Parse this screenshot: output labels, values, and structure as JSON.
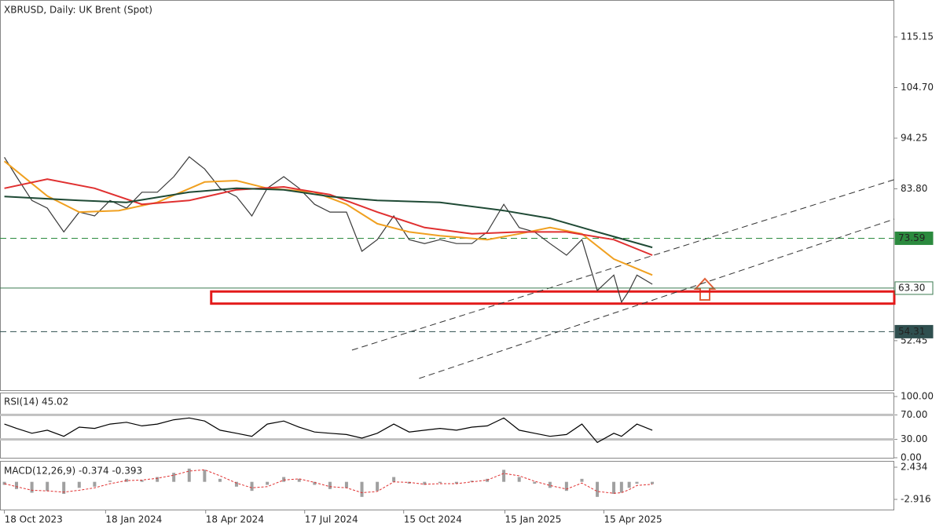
{
  "chart_data": [
    {
      "type": "line",
      "title": "XBRUSD, Daily:  UK Brent (Spot)",
      "xlim": [
        "2023-10-14",
        "2026-01-04"
      ],
      "xticks": [
        {
          "value": "2023-10-18",
          "label": "18 Oct 2023"
        },
        {
          "value": "2024-01-18",
          "label": "18 Jan 2024"
        },
        {
          "value": "2024-04-18",
          "label": "18 Apr 2024"
        },
        {
          "value": "2024-07-17",
          "label": "17 Jul 2024"
        },
        {
          "value": "2024-10-15",
          "label": "15 Oct 2024"
        },
        {
          "value": "2025-01-15",
          "label": "15 Jan 2025"
        },
        {
          "value": "2025-04-15",
          "label": "15 Apr 2025"
        }
      ],
      "ylim": [
        42.22,
        122.77
      ],
      "yticks": [
        115.15,
        {
          "value": 104.7,
          "label": "104.70"
        },
        94.25,
        {
          "value": 83.8,
          "label": "83.80"
        },
        52.45
      ],
      "series": [
        {
          "color": "#3a3a3a",
          "x": [
            "2023-10-18",
            "2023-10-29",
            "2023-11-12",
            "2023-11-26",
            "2023-12-11",
            "2023-12-25",
            "2024-01-08",
            "2024-01-22",
            "2024-02-06",
            "2024-02-20",
            "2024-03-05",
            "2024-03-20",
            "2024-04-03",
            "2024-04-17",
            "2024-05-01",
            "2024-05-16",
            "2024-05-30",
            "2024-06-13",
            "2024-06-28",
            "2024-07-12",
            "2024-07-26",
            "2024-08-09",
            "2024-08-24",
            "2024-09-07",
            "2024-09-21",
            "2024-10-06",
            "2024-10-20",
            "2024-11-03",
            "2024-11-17",
            "2024-12-02",
            "2024-12-16",
            "2024-12-30",
            "2025-01-14",
            "2025-01-28",
            "2025-02-11",
            "2025-02-25",
            "2025-03-12",
            "2025-03-26",
            "2025-04-09",
            "2025-04-24",
            "2025-05-01",
            "2025-05-08",
            "2025-05-15",
            "2025-05-29"
          ],
          "values": [
            90.3,
            86.3,
            81.4,
            79.8,
            74.9,
            79.0,
            78.2,
            81.4,
            79.8,
            83.1,
            83.1,
            86.3,
            90.4,
            87.9,
            83.9,
            82.2,
            78.2,
            83.9,
            86.3,
            83.9,
            80.6,
            79.0,
            79.0,
            70.9,
            73.3,
            78.2,
            73.3,
            72.5,
            73.3,
            72.5,
            72.5,
            74.9,
            80.6,
            75.8,
            74.9,
            72.5,
            70.1,
            73.3,
            62.8,
            66.0,
            60.4,
            62.8,
            66.0,
            64.1
          ]
        },
        {
          "color": "#f0a020",
          "x": [
            "2023-10-18",
            "2023-11-26",
            "2023-12-25",
            "2024-01-30",
            "2024-03-05",
            "2024-04-17",
            "2024-05-16",
            "2024-06-13",
            "2024-07-26",
            "2024-08-24",
            "2024-09-21",
            "2024-10-20",
            "2024-11-17",
            "2024-12-30",
            "2025-01-28",
            "2025-02-25",
            "2025-03-26",
            "2025-04-24",
            "2025-05-29"
          ],
          "values": [
            89.5,
            82.3,
            79.0,
            79.3,
            81.0,
            85.2,
            85.5,
            83.9,
            83.1,
            80.6,
            76.6,
            74.9,
            74.1,
            73.3,
            74.5,
            75.8,
            74.5,
            69.3,
            66.0
          ]
        },
        {
          "color": "#e03030",
          "x": [
            "2023-10-18",
            "2023-11-26",
            "2024-01-08",
            "2024-02-20",
            "2024-04-03",
            "2024-05-16",
            "2024-06-28",
            "2024-08-09",
            "2024-09-21",
            "2024-11-03",
            "2024-12-16",
            "2025-01-28",
            "2025-03-12",
            "2025-04-24",
            "2025-05-29"
          ],
          "values": [
            83.9,
            85.8,
            83.9,
            80.6,
            81.4,
            83.6,
            84.2,
            82.6,
            79.0,
            75.8,
            74.5,
            74.9,
            74.9,
            73.3,
            70.1
          ]
        },
        {
          "color": "#1f4a35",
          "x": [
            "2023-10-18",
            "2023-12-25",
            "2024-02-06",
            "2024-04-03",
            "2024-05-16",
            "2024-06-28",
            "2024-08-09",
            "2024-09-21",
            "2024-11-17",
            "2025-01-14",
            "2025-02-25",
            "2025-04-09",
            "2025-05-29"
          ],
          "values": [
            82.2,
            81.4,
            81.0,
            83.1,
            83.9,
            83.6,
            82.2,
            81.4,
            81.0,
            79.3,
            77.7,
            74.9,
            71.7
          ]
        }
      ],
      "hlines": [
        {
          "value": 73.59,
          "color": "#2b8a3e",
          "dashed": true
        },
        {
          "value": 63.3,
          "label": "63.30",
          "color": "#3b7a50",
          "dashed": false
        },
        {
          "value": 54.31,
          "color": "#2f4f4f",
          "dashed": true
        }
      ],
      "zones": [
        {
          "from": "2024-04-23",
          "to": "2026-01-04",
          "low": 60.1,
          "high": 62.6,
          "color": "#e31b1b"
        }
      ],
      "trendlines": [
        {
          "x": [
            "2024-08-29",
            "2026-01-04"
          ],
          "values": [
            50.5,
            85.7
          ]
        },
        {
          "x": [
            "2024-10-29",
            "2026-01-04"
          ],
          "values": [
            44.65,
            77.55
          ]
        }
      ]
    },
    {
      "type": "line",
      "title": "RSI(14) 45.02",
      "ylim": [
        0,
        100
      ],
      "yticks": [
        {
          "value": 100,
          "label": "100.00"
        },
        {
          "value": 70,
          "label": "70.00"
        },
        {
          "value": 30,
          "label": "30.00"
        },
        {
          "value": 0,
          "label": "0.00"
        }
      ],
      "levels": [
        70,
        30
      ],
      "series": [
        {
          "color": "#000000",
          "values": [
            55,
            48,
            40,
            45,
            35,
            50,
            48,
            55,
            58,
            52,
            55,
            62,
            65,
            60,
            45,
            40,
            35,
            55,
            60,
            50,
            42,
            40,
            38,
            32,
            40,
            55,
            42,
            45,
            48,
            45,
            50,
            52,
            65,
            45,
            40,
            35,
            38,
            55,
            25,
            40,
            35,
            45,
            55,
            45.02
          ]
        }
      ]
    },
    {
      "type": "macd",
      "title": "MACD(12,26,9) -0.374 -0.393",
      "ylim": [
        -4.48,
        3.35
      ],
      "yticks": [
        2.434,
        -2.916
      ],
      "series": [
        {
          "color": "#a0a0a0",
          "values": [
            -0.5,
            -1.2,
            -1.8,
            -1.5,
            -2.0,
            -1.0,
            -0.8,
            0.2,
            0.5,
            0.3,
            0.8,
            1.5,
            2.2,
            2.0,
            0.5,
            -0.8,
            -1.5,
            -0.5,
            0.8,
            0.5,
            -0.5,
            -1.2,
            -1.0,
            -2.5,
            -1.5,
            0.8,
            -0.3,
            -0.5,
            -0.2,
            -0.3,
            0.2,
            0.5,
            2.0,
            0.8,
            -0.3,
            -1.0,
            -1.5,
            0.5,
            -2.5,
            -2.0,
            -1.8,
            -1.0,
            -0.3,
            -0.374
          ]
        },
        {
          "color": "#e03030",
          "dashed": true,
          "values": [
            -0.3,
            -0.8,
            -1.4,
            -1.5,
            -1.7,
            -1.4,
            -1.0,
            -0.3,
            0.2,
            0.3,
            0.6,
            1.1,
            1.8,
            2.0,
            1.0,
            -0.2,
            -1.0,
            -0.8,
            0.3,
            0.5,
            -0.1,
            -0.8,
            -1.0,
            -1.8,
            -1.6,
            0.0,
            -0.1,
            -0.4,
            -0.3,
            -0.3,
            0.0,
            0.3,
            1.4,
            1.0,
            0.1,
            -0.6,
            -1.2,
            -0.2,
            -1.6,
            -1.9,
            -1.8,
            -1.3,
            -0.6,
            -0.393
          ]
        }
      ]
    }
  ]
}
